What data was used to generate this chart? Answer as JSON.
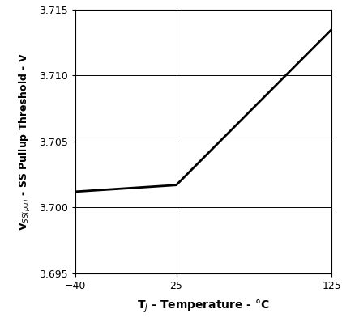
{
  "x": [
    -40,
    25,
    125
  ],
  "y": [
    3.7012,
    3.7017,
    3.7135
  ],
  "xlim": [
    -40,
    125
  ],
  "ylim": [
    3.695,
    3.715
  ],
  "xticks": [
    -40,
    25,
    125
  ],
  "yticks": [
    3.695,
    3.7,
    3.705,
    3.71,
    3.715
  ],
  "ylabel_simple": "V$_{SS(pu)}$ - SS Pullup Threshold - V",
  "xlabel_simple": "T$_J$ - Temperature - °C",
  "line_color": "#000000",
  "line_width": 2.0,
  "grid_color": "#000000",
  "background_color": "#ffffff",
  "figsize": [
    4.22,
    3.93
  ],
  "dpi": 100
}
